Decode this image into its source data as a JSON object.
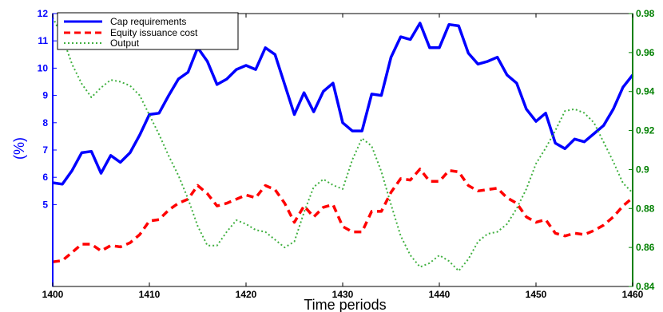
{
  "chart_data": {
    "type": "line",
    "xlabel": "Time periods",
    "ylabel_left": "(%)",
    "xlim": [
      1400,
      1460
    ],
    "ylim_left": [
      2,
      12
    ],
    "ylim_right": [
      0.84,
      0.98
    ],
    "x_ticks": [
      1400,
      1410,
      1420,
      1430,
      1440,
      1450,
      1460
    ],
    "y_ticks_left": [
      5,
      6,
      7,
      8,
      9,
      10,
      11,
      12
    ],
    "y_ticks_right": [
      0.84,
      0.86,
      0.88,
      0.9,
      0.92,
      0.94,
      0.96,
      0.98
    ],
    "legend_position": "top-left",
    "colors": {
      "left_axis": "#0000ff",
      "right_axis": "#008000"
    },
    "x": [
      1400,
      1401,
      1402,
      1403,
      1404,
      1405,
      1406,
      1407,
      1408,
      1409,
      1410,
      1411,
      1412,
      1413,
      1414,
      1415,
      1416,
      1417,
      1418,
      1419,
      1420,
      1421,
      1422,
      1423,
      1424,
      1425,
      1426,
      1427,
      1428,
      1429,
      1430,
      1431,
      1432,
      1433,
      1434,
      1435,
      1436,
      1437,
      1438,
      1439,
      1440,
      1441,
      1442,
      1443,
      1444,
      1445,
      1446,
      1447,
      1448,
      1449,
      1450,
      1451,
      1452,
      1453,
      1454,
      1455,
      1456,
      1457,
      1458,
      1459,
      1460
    ],
    "series": [
      {
        "name": "Cap requirements",
        "axis": "left",
        "color": "#0000ff",
        "style": "solid",
        "values": [
          5.8,
          5.75,
          6.25,
          6.9,
          6.95,
          6.15,
          6.8,
          6.55,
          6.9,
          7.55,
          8.3,
          8.35,
          9.0,
          9.6,
          9.85,
          10.75,
          10.25,
          9.4,
          9.6,
          9.95,
          10.1,
          9.95,
          10.75,
          10.5,
          9.4,
          8.3,
          9.1,
          8.4,
          9.15,
          9.45,
          8.0,
          7.7,
          7.7,
          9.05,
          9.0,
          10.4,
          11.15,
          11.05,
          11.65,
          10.75,
          10.75,
          11.6,
          11.55,
          10.55,
          10.15,
          10.25,
          10.4,
          9.75,
          9.45,
          8.5,
          8.05,
          8.35,
          7.25,
          7.05,
          7.4,
          7.3,
          7.6,
          7.9,
          8.5,
          9.3,
          9.75
        ]
      },
      {
        "name": "Equity issuance cost",
        "axis": "left",
        "color": "#ff0000",
        "style": "dashed",
        "values": [
          2.9,
          2.95,
          3.25,
          3.55,
          3.55,
          3.3,
          3.5,
          3.45,
          3.6,
          3.9,
          4.4,
          4.45,
          4.8,
          5.05,
          5.2,
          5.7,
          5.4,
          4.95,
          5.05,
          5.2,
          5.35,
          5.25,
          5.7,
          5.55,
          5.05,
          4.35,
          4.95,
          4.55,
          4.9,
          5.0,
          4.2,
          4.0,
          4.0,
          4.75,
          4.75,
          5.45,
          5.95,
          5.9,
          6.3,
          5.85,
          5.85,
          6.25,
          6.2,
          5.7,
          5.5,
          5.55,
          5.6,
          5.25,
          5.05,
          4.55,
          4.35,
          4.45,
          3.95,
          3.85,
          3.95,
          3.9,
          4.05,
          4.25,
          4.55,
          4.95,
          5.25
        ]
      },
      {
        "name": "Output",
        "axis": "right",
        "color": "#40b040",
        "style": "dotted",
        "values": [
          0.978,
          0.968,
          0.954,
          0.944,
          0.937,
          0.942,
          0.946,
          0.945,
          0.943,
          0.938,
          0.928,
          0.918,
          0.907,
          0.897,
          0.885,
          0.871,
          0.861,
          0.861,
          0.868,
          0.874,
          0.872,
          0.869,
          0.868,
          0.864,
          0.86,
          0.863,
          0.878,
          0.891,
          0.895,
          0.892,
          0.89,
          0.905,
          0.916,
          0.912,
          0.899,
          0.882,
          0.866,
          0.856,
          0.85,
          0.852,
          0.856,
          0.853,
          0.848,
          0.854,
          0.863,
          0.867,
          0.868,
          0.872,
          0.88,
          0.89,
          0.903,
          0.911,
          0.92,
          0.93,
          0.931,
          0.929,
          0.924,
          0.914,
          0.904,
          0.893,
          0.888
        ]
      }
    ]
  }
}
